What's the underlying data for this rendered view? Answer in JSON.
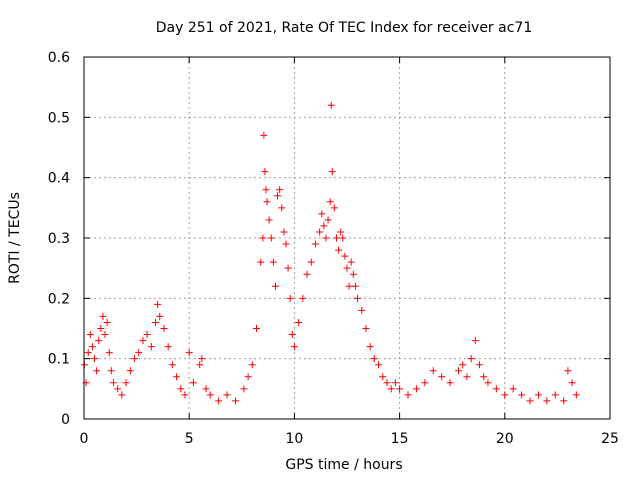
{
  "chart_data": {
    "type": "scatter",
    "title": "Day 251 of 2021, Rate Of TEC Index for receiver ac71",
    "xlabel": "GPS time / hours",
    "ylabel": "ROTI / TECUs",
    "xlim": [
      0,
      25
    ],
    "ylim": [
      0,
      0.6
    ],
    "xticks": [
      "0",
      "5",
      "10",
      "15",
      "20",
      "25"
    ],
    "yticks": [
      "0",
      "0.1",
      "0.2",
      "0.3",
      "0.4",
      "0.5",
      "0.6"
    ],
    "grid": true,
    "marker": "plus",
    "color": "#ff0000",
    "series": [
      {
        "x": [
          0.02,
          0.1,
          0.2,
          0.3,
          0.4,
          0.5,
          0.6,
          0.7,
          0.8,
          0.9,
          1.0,
          1.1,
          1.2,
          1.3,
          1.4,
          1.6,
          1.8,
          2.0,
          2.2,
          2.4,
          2.6,
          2.8,
          3.0,
          3.2,
          3.4,
          3.5,
          3.6,
          3.8,
          4.0,
          4.2,
          4.4,
          4.6,
          4.8,
          5.0,
          5.2,
          5.5,
          5.6,
          5.8,
          6.0,
          6.4,
          6.8,
          7.2,
          7.6,
          7.8,
          8.0,
          8.2,
          8.4,
          8.5,
          8.55,
          8.6,
          8.65,
          8.7,
          8.8,
          8.9,
          9.0,
          9.1,
          9.2,
          9.3,
          9.4,
          9.5,
          9.6,
          9.7,
          9.8,
          9.9,
          10.0,
          10.2,
          10.4,
          10.6,
          10.8,
          11.0,
          11.2,
          11.3,
          11.4,
          11.5,
          11.6,
          11.7,
          11.75,
          11.8,
          11.9,
          12.0,
          12.1,
          12.2,
          12.3,
          12.4,
          12.5,
          12.6,
          12.7,
          12.8,
          12.9,
          13.0,
          13.2,
          13.4,
          13.6,
          13.8,
          14.0,
          14.2,
          14.4,
          14.6,
          14.8,
          15.0,
          15.4,
          15.8,
          16.2,
          16.6,
          17.0,
          17.4,
          17.8,
          18.0,
          18.2,
          18.4,
          18.6,
          18.8,
          19.0,
          19.2,
          19.6,
          20.0,
          20.4,
          20.8,
          21.2,
          21.6,
          22.0,
          22.4,
          22.8,
          23.0,
          23.2,
          23.4
        ],
        "y": [
          0.09,
          0.06,
          0.11,
          0.14,
          0.12,
          0.1,
          0.08,
          0.13,
          0.15,
          0.17,
          0.14,
          0.16,
          0.11,
          0.08,
          0.06,
          0.05,
          0.04,
          0.06,
          0.08,
          0.1,
          0.11,
          0.13,
          0.14,
          0.12,
          0.16,
          0.19,
          0.17,
          0.15,
          0.12,
          0.09,
          0.07,
          0.05,
          0.04,
          0.11,
          0.06,
          0.09,
          0.1,
          0.05,
          0.04,
          0.03,
          0.04,
          0.03,
          0.05,
          0.07,
          0.09,
          0.15,
          0.26,
          0.3,
          0.47,
          0.41,
          0.38,
          0.36,
          0.33,
          0.3,
          0.26,
          0.22,
          0.37,
          0.38,
          0.35,
          0.31,
          0.29,
          0.25,
          0.2,
          0.14,
          0.12,
          0.16,
          0.2,
          0.24,
          0.26,
          0.29,
          0.31,
          0.34,
          0.32,
          0.3,
          0.33,
          0.36,
          0.52,
          0.41,
          0.35,
          0.3,
          0.28,
          0.31,
          0.3,
          0.27,
          0.25,
          0.22,
          0.26,
          0.24,
          0.22,
          0.2,
          0.18,
          0.15,
          0.12,
          0.1,
          0.09,
          0.07,
          0.06,
          0.05,
          0.06,
          0.05,
          0.04,
          0.05,
          0.06,
          0.08,
          0.07,
          0.06,
          0.08,
          0.09,
          0.07,
          0.1,
          0.13,
          0.09,
          0.07,
          0.06,
          0.05,
          0.04,
          0.05,
          0.04,
          0.03,
          0.04,
          0.03,
          0.04,
          0.03,
          0.08,
          0.06,
          0.04
        ]
      }
    ]
  }
}
